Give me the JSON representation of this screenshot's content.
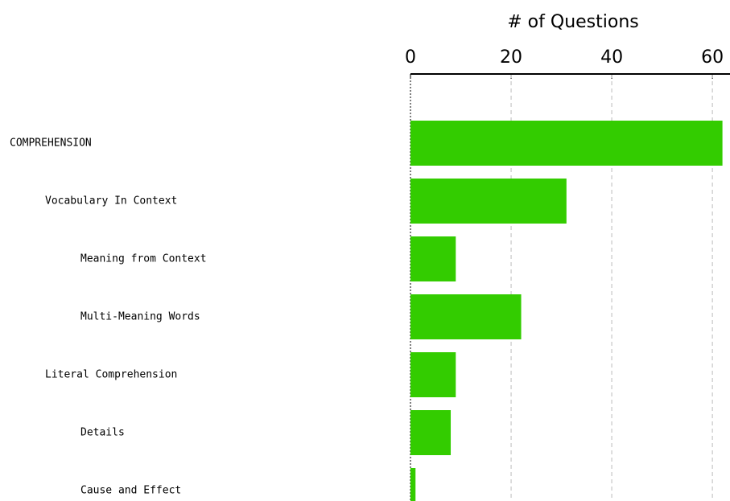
{
  "chart_data": {
    "type": "bar",
    "orientation": "horizontal",
    "xlabel": "# of Questions",
    "categories": [
      "COMPREHENSION",
      "Vocabulary In Context",
      "Meaning from Context",
      "Multi-Meaning Words",
      "Literal Comprehension",
      "Details",
      "Cause and Effect"
    ],
    "values": [
      62,
      31,
      9,
      22,
      9,
      8,
      1
    ],
    "color": "#33cc00",
    "xlim": [
      0,
      63.5
    ],
    "xticks": [
      0,
      20,
      40,
      60
    ],
    "grid": true
  }
}
